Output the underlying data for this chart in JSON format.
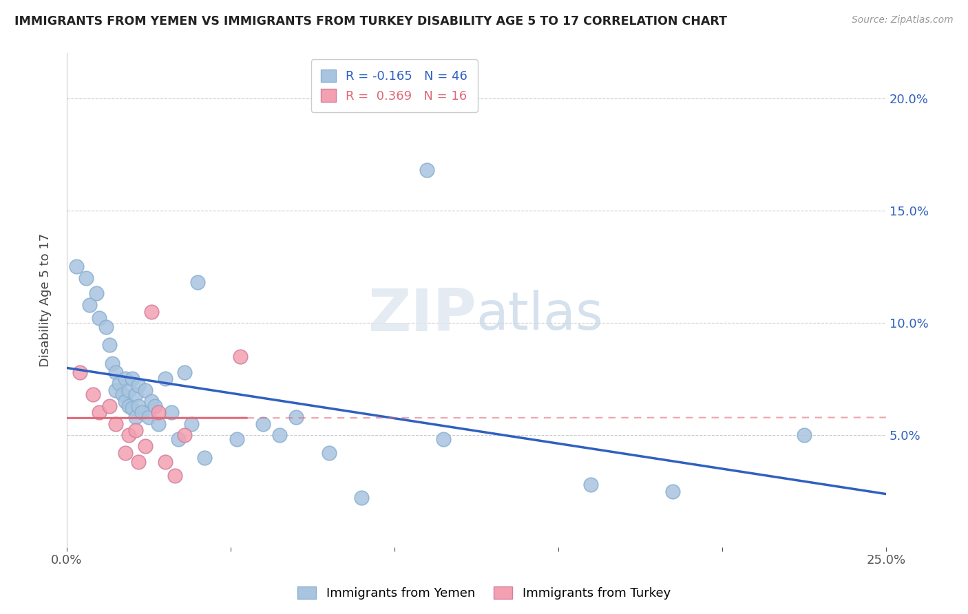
{
  "title": "IMMIGRANTS FROM YEMEN VS IMMIGRANTS FROM TURKEY DISABILITY AGE 5 TO 17 CORRELATION CHART",
  "source": "Source: ZipAtlas.com",
  "ylabel": "Disability Age 5 to 17",
  "xlim": [
    0.0,
    0.25
  ],
  "ylim": [
    0.0,
    0.22
  ],
  "legend_r_yemen": "-0.165",
  "legend_n_yemen": "46",
  "legend_r_turkey": "0.369",
  "legend_n_turkey": "16",
  "yemen_color": "#a8c4e0",
  "turkey_color": "#f4a0b0",
  "yemen_line_color": "#3060c0",
  "turkey_line_color": "#e06878",
  "watermark": "ZIPatlas",
  "yemen_points": [
    [
      0.003,
      0.125
    ],
    [
      0.006,
      0.12
    ],
    [
      0.007,
      0.108
    ],
    [
      0.009,
      0.113
    ],
    [
      0.01,
      0.102
    ],
    [
      0.012,
      0.098
    ],
    [
      0.013,
      0.09
    ],
    [
      0.014,
      0.082
    ],
    [
      0.015,
      0.078
    ],
    [
      0.015,
      0.07
    ],
    [
      0.016,
      0.073
    ],
    [
      0.017,
      0.068
    ],
    [
      0.018,
      0.075
    ],
    [
      0.018,
      0.065
    ],
    [
      0.019,
      0.07
    ],
    [
      0.019,
      0.063
    ],
    [
      0.02,
      0.075
    ],
    [
      0.02,
      0.062
    ],
    [
      0.021,
      0.068
    ],
    [
      0.021,
      0.058
    ],
    [
      0.022,
      0.072
    ],
    [
      0.022,
      0.063
    ],
    [
      0.023,
      0.06
    ],
    [
      0.024,
      0.07
    ],
    [
      0.025,
      0.058
    ],
    [
      0.026,
      0.065
    ],
    [
      0.027,
      0.063
    ],
    [
      0.028,
      0.055
    ],
    [
      0.03,
      0.075
    ],
    [
      0.032,
      0.06
    ],
    [
      0.034,
      0.048
    ],
    [
      0.036,
      0.078
    ],
    [
      0.038,
      0.055
    ],
    [
      0.04,
      0.118
    ],
    [
      0.042,
      0.04
    ],
    [
      0.052,
      0.048
    ],
    [
      0.06,
      0.055
    ],
    [
      0.065,
      0.05
    ],
    [
      0.07,
      0.058
    ],
    [
      0.08,
      0.042
    ],
    [
      0.09,
      0.022
    ],
    [
      0.11,
      0.168
    ],
    [
      0.115,
      0.048
    ],
    [
      0.16,
      0.028
    ],
    [
      0.185,
      0.025
    ],
    [
      0.225,
      0.05
    ]
  ],
  "turkey_points": [
    [
      0.004,
      0.078
    ],
    [
      0.008,
      0.068
    ],
    [
      0.01,
      0.06
    ],
    [
      0.013,
      0.063
    ],
    [
      0.015,
      0.055
    ],
    [
      0.018,
      0.042
    ],
    [
      0.019,
      0.05
    ],
    [
      0.021,
      0.052
    ],
    [
      0.022,
      0.038
    ],
    [
      0.024,
      0.045
    ],
    [
      0.026,
      0.105
    ],
    [
      0.028,
      0.06
    ],
    [
      0.03,
      0.038
    ],
    [
      0.033,
      0.032
    ],
    [
      0.036,
      0.05
    ],
    [
      0.053,
      0.085
    ]
  ],
  "background_color": "#ffffff",
  "grid_color": "#cccccc"
}
